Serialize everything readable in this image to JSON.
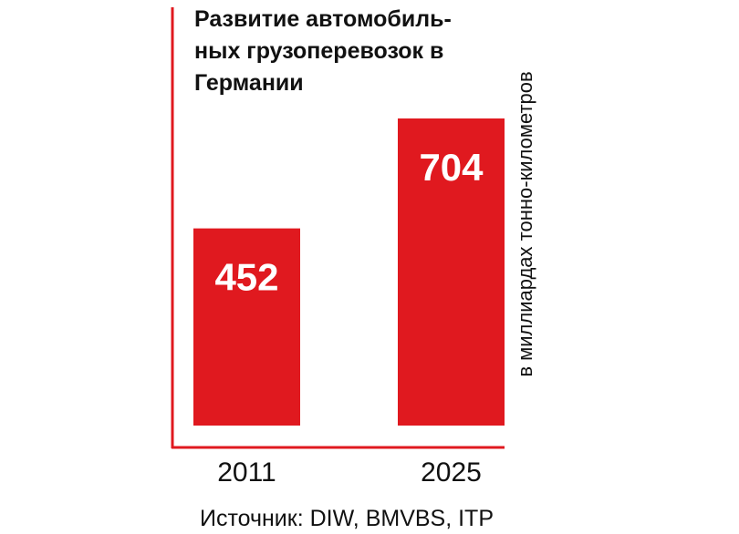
{
  "chart_data": {
    "type": "bar",
    "title_lines": [
      "Развитие автомобиль-",
      "ных грузоперевозок в",
      "Германии"
    ],
    "categories": [
      "2011",
      "2025"
    ],
    "values": [
      452,
      704
    ],
    "ylabel": "в миллиардах тонно-километров",
    "ylim": [
      0,
      780
    ],
    "grid": false,
    "source": "Источник: DIW, BMVBS, ITP",
    "colors": {
      "bar": "#e0191f",
      "axis": "#e0191f",
      "text": "#111111",
      "data_label": "#ffffff"
    }
  }
}
